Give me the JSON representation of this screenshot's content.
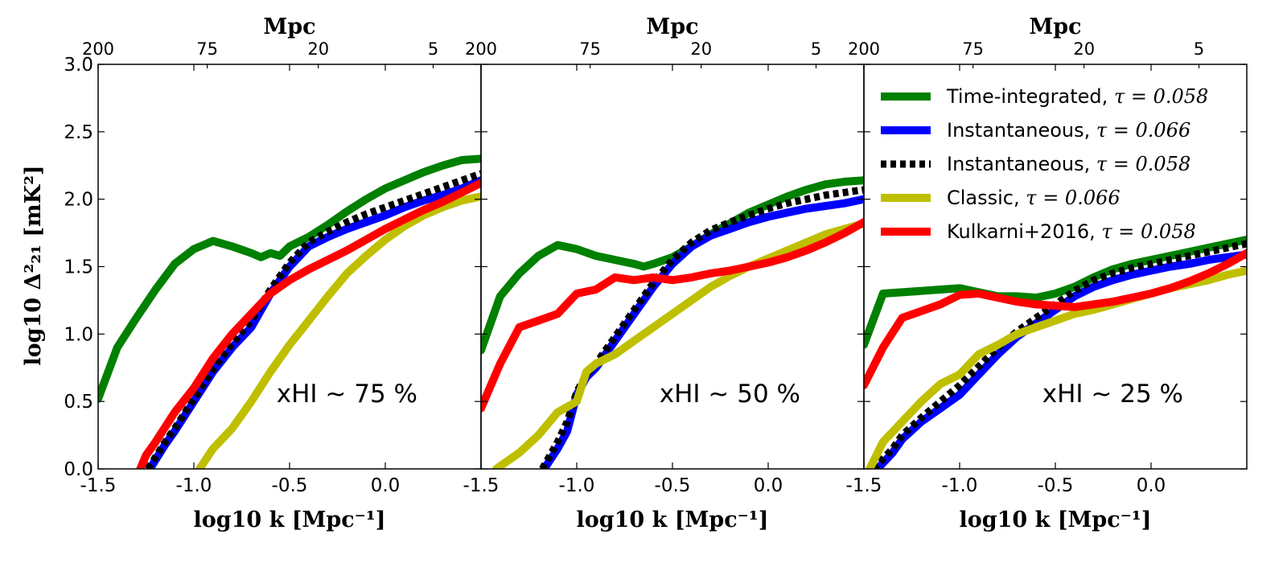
{
  "chart_data": {
    "type": "line",
    "shared": {
      "ylabel": "log10 Δ²₂₁ [mK²]",
      "xlabel": "log10 k [Mpc⁻¹]",
      "top_axis_label": "Mpc",
      "xlim": [
        -1.5,
        0.5
      ],
      "ylim": [
        0.0,
        3.0
      ],
      "x_ticks": [
        -1.5,
        -1.0,
        -0.5,
        0.0
      ],
      "x_tick_labels": [
        "-1.5",
        "-1.0",
        "-0.5",
        "0.0"
      ],
      "y_ticks": [
        0.0,
        0.5,
        1.0,
        1.5,
        2.0,
        2.5,
        3.0
      ],
      "y_tick_labels": [
        "0.0",
        "0.5",
        "1.0",
        "1.5",
        "2.0",
        "2.5",
        "3.0"
      ],
      "top_tick_labels": [
        "200",
        "75",
        "20",
        "5"
      ],
      "top_tick_logk": [
        -1.5,
        -0.93,
        -0.35,
        0.25
      ]
    },
    "series_styles": [
      {
        "name": "Time-integrated",
        "tau": "τ = 0.058",
        "color": "#008000",
        "dashed": false
      },
      {
        "name": "Instantaneous",
        "tau": "τ = 0.066",
        "color": "#0000ff",
        "dashed": false
      },
      {
        "name": "Instantaneous",
        "tau": "τ = 0.058",
        "color": "#000000",
        "dashed": true
      },
      {
        "name": "Classic",
        "tau": "τ = 0.066",
        "color": "#bfbf00",
        "dashed": false
      },
      {
        "name": "Kulkarni+2016",
        "tau": "τ = 0.058",
        "color": "#ff0000",
        "dashed": false
      }
    ],
    "legend_location": "top-right of third panel",
    "panels": [
      {
        "annotation": "xHI ~ 75 %",
        "series": [
          {
            "name": "Time-integrated, τ = 0.058",
            "x": [
              -1.5,
              -1.4,
              -1.3,
              -1.2,
              -1.1,
              -1.0,
              -0.9,
              -0.8,
              -0.7,
              -0.65,
              -0.6,
              -0.55,
              -0.5,
              -0.4,
              -0.3,
              -0.2,
              -0.1,
              0.0,
              0.1,
              0.2,
              0.3,
              0.4,
              0.5
            ],
            "y": [
              0.52,
              0.9,
              1.12,
              1.33,
              1.52,
              1.63,
              1.69,
              1.65,
              1.6,
              1.57,
              1.6,
              1.58,
              1.65,
              1.72,
              1.81,
              1.91,
              2.0,
              2.08,
              2.14,
              2.2,
              2.25,
              2.29,
              2.3
            ]
          },
          {
            "name": "Instantaneous, τ = 0.066",
            "x": [
              -1.23,
              -1.15,
              -1.1,
              -1.0,
              -0.9,
              -0.8,
              -0.7,
              -0.6,
              -0.5,
              -0.4,
              -0.3,
              -0.2,
              -0.1,
              0.0,
              0.1,
              0.2,
              0.3,
              0.4,
              0.5
            ],
            "y": [
              0.0,
              0.18,
              0.28,
              0.5,
              0.72,
              0.9,
              1.05,
              1.3,
              1.5,
              1.65,
              1.72,
              1.78,
              1.83,
              1.88,
              1.94,
              1.99,
              2.03,
              2.08,
              2.14
            ]
          },
          {
            "name": "Instantaneous, τ = 0.058",
            "x": [
              -1.24,
              -1.15,
              -1.1,
              -1.0,
              -0.9,
              -0.8,
              -0.7,
              -0.6,
              -0.5,
              -0.4,
              -0.3,
              -0.2,
              -0.1,
              0.0,
              0.1,
              0.2,
              0.3,
              0.4,
              0.5
            ],
            "y": [
              0.0,
              0.2,
              0.3,
              0.52,
              0.74,
              0.93,
              1.1,
              1.33,
              1.53,
              1.68,
              1.76,
              1.83,
              1.89,
              1.94,
              1.99,
              2.04,
              2.09,
              2.14,
              2.19
            ]
          },
          {
            "name": "Classic, τ = 0.066",
            "x": [
              -0.97,
              -0.9,
              -0.8,
              -0.7,
              -0.6,
              -0.5,
              -0.4,
              -0.3,
              -0.2,
              -0.1,
              0.0,
              0.1,
              0.2,
              0.3,
              0.4,
              0.5
            ],
            "y": [
              0.0,
              0.15,
              0.3,
              0.5,
              0.72,
              0.92,
              1.1,
              1.28,
              1.45,
              1.58,
              1.7,
              1.8,
              1.88,
              1.94,
              1.99,
              2.02
            ]
          },
          {
            "name": "Kulkarni+2016, τ = 0.058",
            "x": [
              -1.28,
              -1.25,
              -1.2,
              -1.1,
              -1.0,
              -0.9,
              -0.8,
              -0.7,
              -0.6,
              -0.5,
              -0.4,
              -0.3,
              -0.2,
              -0.1,
              0.0,
              0.1,
              0.2,
              0.3,
              0.4,
              0.5
            ],
            "y": [
              0.0,
              0.1,
              0.2,
              0.42,
              0.6,
              0.82,
              1.0,
              1.15,
              1.3,
              1.4,
              1.48,
              1.55,
              1.62,
              1.7,
              1.78,
              1.85,
              1.92,
              1.98,
              2.05,
              2.12
            ]
          }
        ]
      },
      {
        "annotation": "xHI ~ 50 %",
        "series": [
          {
            "name": "Time-integrated, τ = 0.058",
            "x": [
              -1.5,
              -1.4,
              -1.3,
              -1.2,
              -1.1,
              -1.0,
              -0.9,
              -0.8,
              -0.7,
              -0.65,
              -0.6,
              -0.5,
              -0.4,
              -0.3,
              -0.2,
              -0.1,
              0.0,
              0.1,
              0.2,
              0.3,
              0.4,
              0.5
            ],
            "y": [
              0.88,
              1.28,
              1.45,
              1.58,
              1.66,
              1.63,
              1.58,
              1.55,
              1.52,
              1.5,
              1.52,
              1.57,
              1.65,
              1.74,
              1.82,
              1.9,
              1.96,
              2.02,
              2.07,
              2.11,
              2.13,
              2.14
            ]
          },
          {
            "name": "Instantaneous, τ = 0.066",
            "x": [
              -1.17,
              -1.1,
              -1.05,
              -1.0,
              -0.95,
              -0.9,
              -0.8,
              -0.7,
              -0.6,
              -0.5,
              -0.4,
              -0.3,
              -0.2,
              -0.1,
              0.0,
              0.1,
              0.2,
              0.3,
              0.4,
              0.5
            ],
            "y": [
              0.0,
              0.15,
              0.28,
              0.55,
              0.68,
              0.75,
              0.95,
              1.15,
              1.35,
              1.52,
              1.65,
              1.73,
              1.78,
              1.83,
              1.87,
              1.9,
              1.93,
              1.95,
              1.97,
              2.0
            ]
          },
          {
            "name": "Instantaneous, τ = 0.058",
            "x": [
              -1.18,
              -1.1,
              -1.05,
              -1.0,
              -0.95,
              -0.9,
              -0.8,
              -0.7,
              -0.6,
              -0.5,
              -0.4,
              -0.3,
              -0.2,
              -0.1,
              0.0,
              0.1,
              0.2,
              0.3,
              0.4,
              0.5
            ],
            "y": [
              0.0,
              0.2,
              0.35,
              0.57,
              0.7,
              0.78,
              0.98,
              1.18,
              1.38,
              1.55,
              1.68,
              1.77,
              1.83,
              1.88,
              1.93,
              1.97,
              2.0,
              2.03,
              2.05,
              2.07
            ]
          },
          {
            "name": "Classic, τ = 0.066",
            "x": [
              -1.42,
              -1.3,
              -1.2,
              -1.1,
              -1.0,
              -0.95,
              -0.9,
              -0.8,
              -0.7,
              -0.6,
              -0.5,
              -0.4,
              -0.3,
              -0.2,
              -0.1,
              0.0,
              0.1,
              0.2,
              0.3,
              0.4,
              0.5
            ],
            "y": [
              0.0,
              0.12,
              0.25,
              0.42,
              0.5,
              0.72,
              0.78,
              0.85,
              0.95,
              1.05,
              1.15,
              1.25,
              1.35,
              1.43,
              1.5,
              1.56,
              1.62,
              1.68,
              1.74,
              1.78,
              1.82
            ]
          },
          {
            "name": "Kulkarni+2016, τ = 0.058",
            "x": [
              -1.5,
              -1.4,
              -1.3,
              -1.2,
              -1.1,
              -1.0,
              -0.9,
              -0.8,
              -0.7,
              -0.6,
              -0.5,
              -0.4,
              -0.3,
              -0.2,
              -0.1,
              0.0,
              0.1,
              0.2,
              0.3,
              0.4,
              0.5
            ],
            "y": [
              0.45,
              0.78,
              1.05,
              1.1,
              1.15,
              1.3,
              1.33,
              1.42,
              1.4,
              1.42,
              1.4,
              1.42,
              1.45,
              1.47,
              1.5,
              1.53,
              1.57,
              1.62,
              1.68,
              1.75,
              1.83
            ]
          }
        ]
      },
      {
        "annotation": "xHI ~ 25 %",
        "series": [
          {
            "name": "Time-integrated, τ = 0.058",
            "x": [
              -1.5,
              -1.4,
              -1.3,
              -1.2,
              -1.1,
              -1.0,
              -0.9,
              -0.8,
              -0.7,
              -0.6,
              -0.5,
              -0.4,
              -0.3,
              -0.2,
              -0.1,
              0.0,
              0.1,
              0.2,
              0.3,
              0.4,
              0.5
            ],
            "y": [
              0.92,
              1.3,
              1.31,
              1.32,
              1.33,
              1.34,
              1.31,
              1.28,
              1.28,
              1.27,
              1.3,
              1.35,
              1.42,
              1.48,
              1.52,
              1.55,
              1.58,
              1.61,
              1.64,
              1.67,
              1.7
            ]
          },
          {
            "name": "Instantaneous, τ = 0.066",
            "x": [
              -1.43,
              -1.35,
              -1.3,
              -1.2,
              -1.1,
              -1.0,
              -0.9,
              -0.8,
              -0.7,
              -0.6,
              -0.5,
              -0.4,
              -0.3,
              -0.2,
              -0.1,
              0.0,
              0.1,
              0.2,
              0.3,
              0.4,
              0.5
            ],
            "y": [
              0.0,
              0.12,
              0.22,
              0.35,
              0.45,
              0.55,
              0.7,
              0.85,
              0.98,
              1.08,
              1.18,
              1.28,
              1.35,
              1.4,
              1.44,
              1.47,
              1.5,
              1.52,
              1.55,
              1.57,
              1.59
            ]
          },
          {
            "name": "Instantaneous, τ = 0.058",
            "x": [
              -1.45,
              -1.35,
              -1.3,
              -1.2,
              -1.1,
              -1.0,
              -0.9,
              -0.8,
              -0.7,
              -0.6,
              -0.5,
              -0.4,
              -0.3,
              -0.2,
              -0.1,
              0.0,
              0.1,
              0.2,
              0.3,
              0.4,
              0.5
            ],
            "y": [
              0.0,
              0.15,
              0.25,
              0.38,
              0.5,
              0.62,
              0.76,
              0.9,
              1.02,
              1.12,
              1.22,
              1.32,
              1.4,
              1.45,
              1.49,
              1.52,
              1.55,
              1.58,
              1.61,
              1.64,
              1.67
            ]
          },
          {
            "name": "Classic, τ = 0.066",
            "x": [
              -1.47,
              -1.4,
              -1.3,
              -1.2,
              -1.1,
              -1.0,
              -0.9,
              -0.8,
              -0.7,
              -0.6,
              -0.5,
              -0.4,
              -0.3,
              -0.2,
              -0.1,
              0.0,
              0.1,
              0.2,
              0.3,
              0.4,
              0.5
            ],
            "y": [
              0.0,
              0.2,
              0.35,
              0.5,
              0.63,
              0.7,
              0.85,
              0.92,
              1.0,
              1.05,
              1.1,
              1.15,
              1.18,
              1.22,
              1.26,
              1.3,
              1.34,
              1.37,
              1.4,
              1.44,
              1.47
            ]
          },
          {
            "name": "Kulkarni+2016, τ = 0.058",
            "x": [
              -1.5,
              -1.4,
              -1.3,
              -1.2,
              -1.1,
              -1.0,
              -0.9,
              -0.8,
              -0.7,
              -0.6,
              -0.5,
              -0.4,
              -0.3,
              -0.2,
              -0.1,
              0.0,
              0.1,
              0.2,
              0.3,
              0.4,
              0.5
            ],
            "y": [
              0.62,
              0.9,
              1.12,
              1.17,
              1.22,
              1.29,
              1.3,
              1.27,
              1.24,
              1.22,
              1.21,
              1.2,
              1.22,
              1.24,
              1.27,
              1.3,
              1.34,
              1.39,
              1.45,
              1.52,
              1.6
            ]
          }
        ]
      }
    ]
  }
}
